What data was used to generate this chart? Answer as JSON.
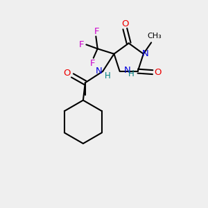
{
  "bg_color": "#efefef",
  "bond_color": "#000000",
  "N_color": "#0000dd",
  "O_color": "#ee0000",
  "F_color": "#cc00cc",
  "NH_color": "#008080",
  "lw": 1.5,
  "figsize": [
    3.0,
    3.0
  ],
  "dpi": 100,
  "xlim": [
    0,
    10
  ],
  "ylim": [
    0,
    10
  ]
}
